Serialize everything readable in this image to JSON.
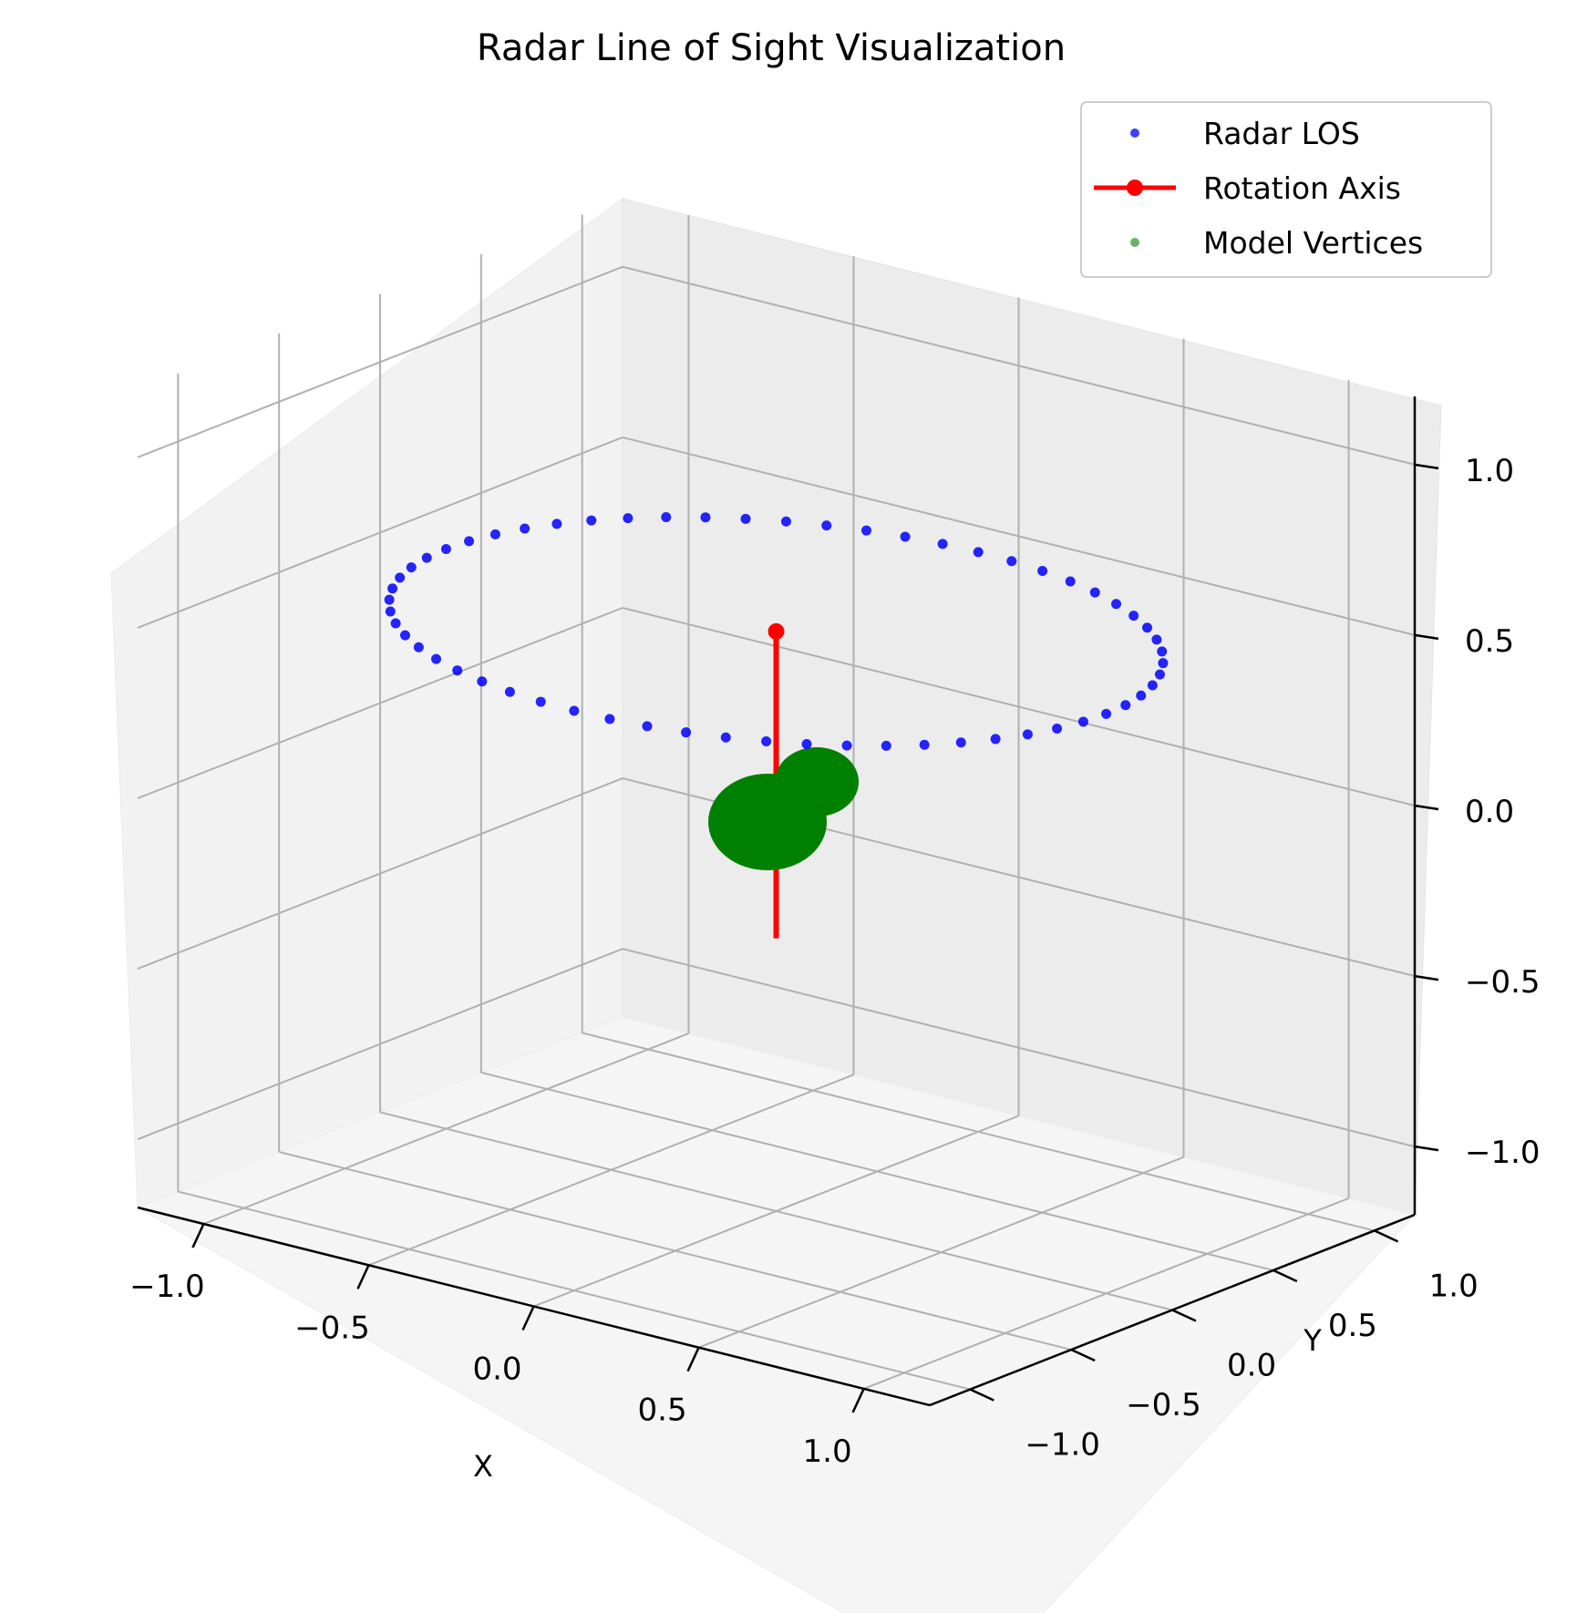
{
  "chart_data": {
    "type": "scatter",
    "projection": "3d",
    "title": "Radar Line of Sight Visualization",
    "xlabel": "X",
    "ylabel": "Y",
    "zlabel": "",
    "xlim": [
      -1.2,
      1.2
    ],
    "ylim": [
      -1.2,
      1.2
    ],
    "zlim": [
      -1.2,
      1.2
    ],
    "x_ticks": [
      "−1.0",
      "−0.5",
      "0.0",
      "0.5",
      "1.0"
    ],
    "y_ticks": [
      "−1.0",
      "−0.5",
      "0.0",
      "0.5",
      "1.0"
    ],
    "z_ticks": [
      "−1.0",
      "−0.5",
      "0.0",
      "0.5",
      "1.0"
    ],
    "grid": true,
    "legend_position": "top-right",
    "legend": [
      "Radar LOS",
      "Rotation Axis",
      "Model Vertices"
    ],
    "series": [
      {
        "name": "Radar LOS",
        "kind": "scatter",
        "color": "#0000ff",
        "shape": "circle of 60 points, radius 1.0, at z = 0.5",
        "radius": 1.0,
        "z": 0.5,
        "count": 60
      },
      {
        "name": "Rotation Axis",
        "kind": "line",
        "color": "#ff0000",
        "points": [
          [
            0,
            0,
            0
          ],
          [
            0,
            0,
            0.5
          ]
        ]
      },
      {
        "name": "Model Vertices",
        "kind": "scatter",
        "color": "#008000",
        "spheres": [
          {
            "center": [
              0,
              0,
              0
            ],
            "radius": 0.15
          },
          {
            "center": [
              0.2,
              0.15,
              0.1
            ],
            "radius": 0.12
          }
        ]
      }
    ]
  }
}
